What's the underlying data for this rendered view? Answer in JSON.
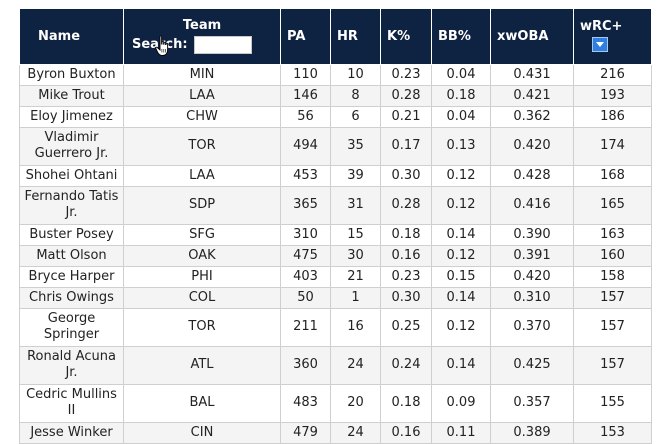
{
  "table": {
    "headers": {
      "name": "Name",
      "team": "Team",
      "team_search_label": "Search:",
      "team_search_value": "",
      "pa": "PA",
      "hr": "HR",
      "k_pct": "K%",
      "bb_pct": "BB%",
      "xwoba": "xwOBA",
      "wrc_plus": "wRC+"
    },
    "sort": {
      "column": "wRC+",
      "direction": "descending"
    },
    "rows": [
      {
        "name": "Byron Buxton",
        "team": "MIN",
        "pa": "110",
        "hr": "10",
        "k": "0.23",
        "bb": "0.04",
        "xwoba": "0.431",
        "wrc": "216"
      },
      {
        "name": "Mike Trout",
        "team": "LAA",
        "pa": "146",
        "hr": "8",
        "k": "0.28",
        "bb": "0.18",
        "xwoba": "0.421",
        "wrc": "193"
      },
      {
        "name": "Eloy Jimenez",
        "team": "CHW",
        "pa": "56",
        "hr": "6",
        "k": "0.21",
        "bb": "0.04",
        "xwoba": "0.362",
        "wrc": "186"
      },
      {
        "name": "Vladimir Guerrero Jr.",
        "team": "TOR",
        "pa": "494",
        "hr": "35",
        "k": "0.17",
        "bb": "0.13",
        "xwoba": "0.420",
        "wrc": "174"
      },
      {
        "name": "Shohei Ohtani",
        "team": "LAA",
        "pa": "453",
        "hr": "39",
        "k": "0.30",
        "bb": "0.12",
        "xwoba": "0.428",
        "wrc": "168"
      },
      {
        "name": "Fernando Tatis Jr.",
        "team": "SDP",
        "pa": "365",
        "hr": "31",
        "k": "0.28",
        "bb": "0.12",
        "xwoba": "0.416",
        "wrc": "165"
      },
      {
        "name": "Buster Posey",
        "team": "SFG",
        "pa": "310",
        "hr": "15",
        "k": "0.18",
        "bb": "0.14",
        "xwoba": "0.390",
        "wrc": "163"
      },
      {
        "name": "Matt Olson",
        "team": "OAK",
        "pa": "475",
        "hr": "30",
        "k": "0.16",
        "bb": "0.12",
        "xwoba": "0.391",
        "wrc": "160"
      },
      {
        "name": "Bryce Harper",
        "team": "PHI",
        "pa": "403",
        "hr": "21",
        "k": "0.23",
        "bb": "0.15",
        "xwoba": "0.420",
        "wrc": "158"
      },
      {
        "name": "Chris Owings",
        "team": "COL",
        "pa": "50",
        "hr": "1",
        "k": "0.30",
        "bb": "0.14",
        "xwoba": "0.310",
        "wrc": "157"
      },
      {
        "name": "George Springer",
        "team": "TOR",
        "pa": "211",
        "hr": "16",
        "k": "0.25",
        "bb": "0.12",
        "xwoba": "0.370",
        "wrc": "157"
      },
      {
        "name": "Ronald Acuna Jr.",
        "team": "ATL",
        "pa": "360",
        "hr": "24",
        "k": "0.24",
        "bb": "0.14",
        "xwoba": "0.425",
        "wrc": "157"
      },
      {
        "name": "Cedric Mullins II",
        "team": "BAL",
        "pa": "483",
        "hr": "20",
        "k": "0.18",
        "bb": "0.09",
        "xwoba": "0.357",
        "wrc": "155"
      },
      {
        "name": "Jesse Winker",
        "team": "CIN",
        "pa": "479",
        "hr": "24",
        "k": "0.16",
        "bb": "0.11",
        "xwoba": "0.389",
        "wrc": "153"
      }
    ]
  },
  "colors": {
    "header_bg": "#0e2242",
    "header_text": "#ffffff",
    "sort_button": "#2f7fe0",
    "row_alt": "#f4f4f4",
    "border": "#cfcfcf"
  },
  "icons": {
    "cursor": "hand-pointer-icon",
    "sort": "sort-descending-icon"
  }
}
